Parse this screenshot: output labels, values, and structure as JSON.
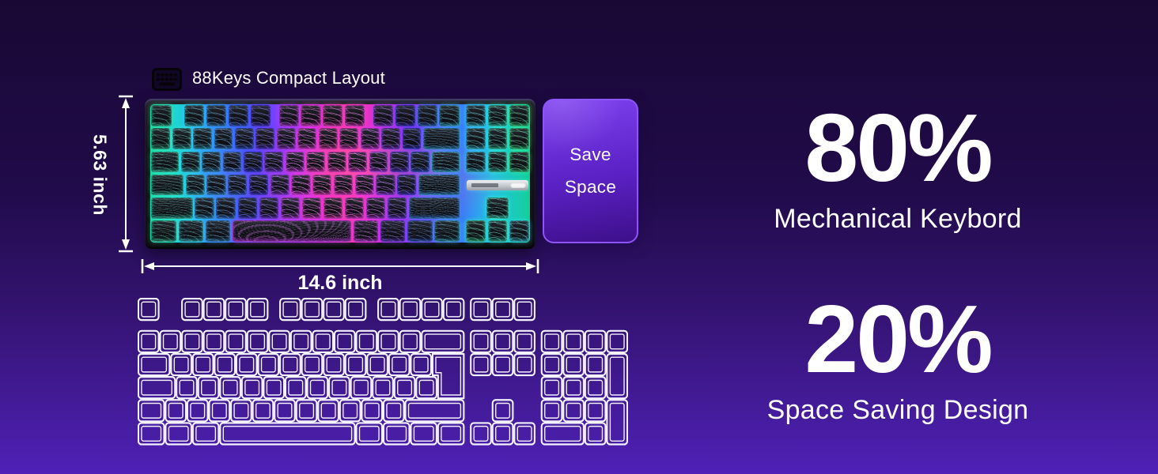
{
  "background": {
    "stops": [
      "#190834",
      "#210b4a",
      "#331370",
      "#4f21b6"
    ]
  },
  "header": {
    "icon": "keyboard-icon",
    "title": "88Keys Compact Layout"
  },
  "dimensions": {
    "height_label": "5.63 inch",
    "width_label": "14.6 inch"
  },
  "save_badge": {
    "line1": "Save",
    "line2": "Space",
    "border": "#8d55f5",
    "grad_top": "#7e41f0",
    "grad_bottom": "#3d0f8a"
  },
  "stats": [
    {
      "value": "80%",
      "label": "Mechanical Keybord"
    },
    {
      "value": "20%",
      "label": "Space Saving Design"
    }
  ],
  "compact_keyboard": {
    "description": "88-key compact RGB mechanical keyboard, black topographic keycaps",
    "main_rows": [
      [
        1,
        -0.6,
        1,
        1,
        1,
        1,
        -0.35,
        1,
        1,
        1,
        1,
        -0.35,
        1,
        1,
        1,
        1
      ],
      [
        1,
        1,
        1,
        1,
        1,
        1,
        1,
        1,
        1,
        1,
        1,
        1,
        1,
        2
      ],
      [
        1.5,
        1,
        1,
        1,
        1,
        1,
        1,
        1,
        1,
        1,
        1,
        1,
        1,
        1.5
      ],
      [
        1.75,
        1,
        1,
        1,
        1,
        1,
        1,
        1,
        1,
        1,
        1,
        1,
        2.25
      ],
      [
        2.25,
        1,
        1,
        1,
        1,
        1,
        1,
        1,
        1,
        1,
        1,
        2.75
      ],
      [
        1.25,
        1.25,
        1.25,
        6.25,
        1.25,
        1.25,
        1.25,
        1.25
      ]
    ],
    "hue_stops": [
      [
        0,
        155
      ],
      [
        0.09,
        172
      ],
      [
        0.18,
        198
      ],
      [
        0.3,
        228
      ],
      [
        0.4,
        262
      ],
      [
        0.48,
        296
      ],
      [
        0.56,
        318
      ],
      [
        0.66,
        308
      ],
      [
        0.76,
        268
      ],
      [
        0.86,
        232
      ],
      [
        0.94,
        200
      ],
      [
        1,
        178
      ]
    ],
    "right_hues": [
      188,
      166,
      150
    ],
    "arrow_hues": [
      155,
      168,
      185
    ]
  },
  "fullsize_keyboard": {
    "description": "Full-size 104-key keyboard outline for size comparison",
    "stroke": "#f3f1fd",
    "keys": [
      [
        0,
        0,
        1,
        1
      ],
      [
        2,
        0,
        1,
        1,
        4,
        1
      ],
      [
        6.5,
        0,
        1,
        1,
        4,
        1
      ],
      [
        11,
        0,
        1,
        1,
        4,
        1
      ],
      [
        15.25,
        0,
        1,
        1,
        3,
        1
      ],
      [
        0,
        1.4,
        1,
        1,
        13,
        1
      ],
      [
        13,
        1.4,
        2,
        1
      ],
      [
        15.25,
        1.4,
        1,
        1,
        3,
        1
      ],
      [
        18.5,
        1.4,
        1,
        1,
        4,
        1
      ],
      [
        0,
        2.4,
        1.5,
        1
      ],
      [
        1.5,
        2.4,
        1,
        1,
        12,
        1
      ],
      [
        15.25,
        2.4,
        1,
        1,
        3,
        1
      ],
      [
        18.5,
        2.4,
        1,
        1,
        3,
        1
      ],
      [
        21.5,
        2.4,
        1,
        2
      ],
      [
        0,
        3.4,
        1.75,
        1
      ],
      [
        1.75,
        3.4,
        1,
        1,
        12,
        1
      ],
      [
        18.5,
        3.4,
        1,
        1,
        3,
        1
      ],
      [
        0,
        4.4,
        1.25,
        1
      ],
      [
        1.25,
        4.4,
        1,
        1,
        11,
        1
      ],
      [
        12.25,
        4.4,
        2.75,
        1
      ],
      [
        16.25,
        4.4,
        1,
        1
      ],
      [
        18.5,
        4.4,
        1,
        1,
        3,
        1
      ],
      [
        21.5,
        4.4,
        1,
        2
      ],
      [
        0,
        5.4,
        1.25,
        1,
        3,
        1.25
      ],
      [
        3.75,
        5.4,
        6.25,
        1
      ],
      [
        10,
        5.4,
        1.25,
        1,
        4,
        1.25
      ],
      [
        15.25,
        5.4,
        1,
        1,
        3,
        1
      ],
      [
        18.5,
        5.4,
        2,
        1
      ],
      [
        20.5,
        5.4,
        1,
        1
      ]
    ],
    "iso_enter": true
  }
}
